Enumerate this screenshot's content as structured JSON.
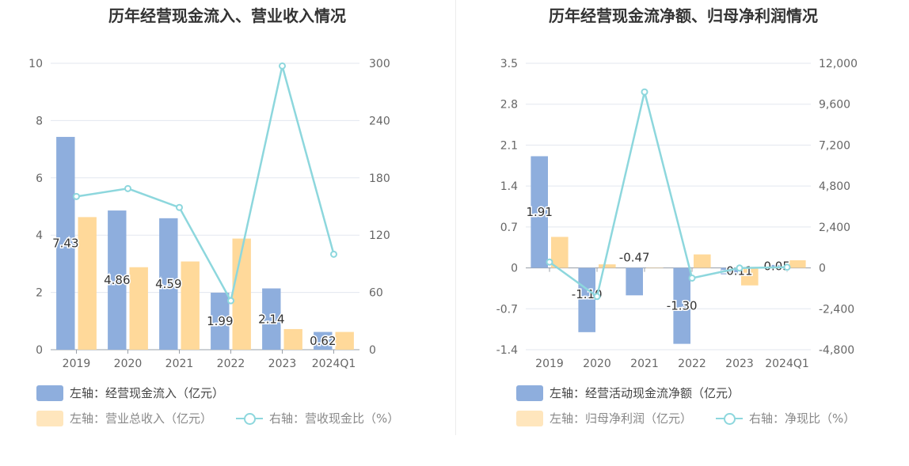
{
  "chart_data": [
    {
      "type": "bar",
      "title": "历年经营现金流入、营业收入情况",
      "categories": [
        "2019",
        "2020",
        "2021",
        "2022",
        "2023",
        "2024Q1"
      ],
      "y_left": {
        "ticks": [
          "0",
          "2",
          "4",
          "6",
          "8",
          "10"
        ],
        "ylim": [
          0,
          10
        ]
      },
      "y_right": {
        "ticks": [
          "0",
          "60",
          "120",
          "180",
          "240",
          "300"
        ],
        "ylim": [
          0,
          300
        ]
      },
      "series": [
        {
          "name": "左轴：经营现金流入（亿元）",
          "axis": "left",
          "type": "bar",
          "color": "#8eaedd",
          "values": [
            7.43,
            4.86,
            4.59,
            1.99,
            2.14,
            0.62
          ],
          "labels": [
            "7.43",
            "4.86",
            "4.59",
            "1.99",
            "2.14",
            "0.62"
          ]
        },
        {
          "name": "左轴：营业总收入（亿元）",
          "axis": "left",
          "type": "bar",
          "color": "#ffd99a",
          "values": [
            4.63,
            2.88,
            3.08,
            3.88,
            0.72,
            0.62
          ]
        },
        {
          "name": "右轴：营收现金比（%）",
          "axis": "right",
          "type": "line",
          "color": "#8dd7dd",
          "values": [
            160.5,
            168.8,
            149.0,
            51.3,
            297.2,
            100.0
          ]
        }
      ]
    },
    {
      "type": "bar",
      "title": "历年经营现金流净额、归母净利润情况",
      "categories": [
        "2019",
        "2020",
        "2021",
        "2022",
        "2023",
        "2024Q1"
      ],
      "y_left": {
        "ticks": [
          "-1.4",
          "-0.7",
          "0",
          "0.7",
          "1.4",
          "2.1",
          "2.8",
          "3.5"
        ],
        "ylim": [
          -1.4,
          3.5
        ]
      },
      "y_right": {
        "ticks": [
          "-4,800",
          "-2,400",
          "0",
          "2,400",
          "4,800",
          "7,200",
          "9,600",
          "12,000"
        ],
        "ylim": [
          -4800,
          12000
        ]
      },
      "series": [
        {
          "name": "左轴：经营活动现金流净额（亿元）",
          "axis": "left",
          "type": "bar",
          "color": "#8eaedd",
          "values": [
            1.91,
            -1.1,
            -0.47,
            -1.3,
            -0.11,
            0.05
          ],
          "labels": [
            "1.91",
            "-1.10",
            "-0.47",
            "-1.30",
            "-0.11",
            "0.05"
          ]
        },
        {
          "name": "左轴：归母净利润（亿元）",
          "axis": "left",
          "type": "bar",
          "color": "#ffd99a",
          "values": [
            0.53,
            0.06,
            0.0,
            0.23,
            -0.3,
            0.13
          ]
        },
        {
          "name": "右轴：净现比（%）",
          "axis": "right",
          "type": "line",
          "color": "#8dd7dd",
          "values": [
            340,
            -1680,
            10320,
            -600,
            -10,
            40
          ]
        }
      ]
    }
  ]
}
